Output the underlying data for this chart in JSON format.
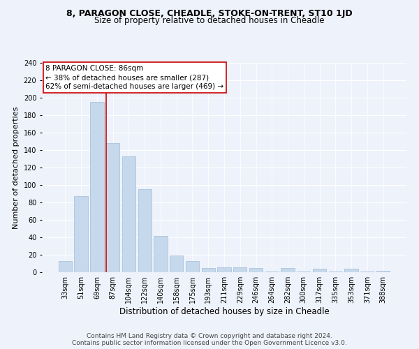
{
  "title": "8, PARAGON CLOSE, CHEADLE, STOKE-ON-TRENT, ST10 1JD",
  "subtitle": "Size of property relative to detached houses in Cheadle",
  "xlabel": "Distribution of detached houses by size in Cheadle",
  "ylabel": "Number of detached properties",
  "footer_line1": "Contains HM Land Registry data © Crown copyright and database right 2024.",
  "footer_line2": "Contains public sector information licensed under the Open Government Licence v3.0.",
  "bar_labels": [
    "33sqm",
    "51sqm",
    "69sqm",
    "87sqm",
    "104sqm",
    "122sqm",
    "140sqm",
    "158sqm",
    "175sqm",
    "193sqm",
    "211sqm",
    "229sqm",
    "246sqm",
    "264sqm",
    "282sqm",
    "300sqm",
    "317sqm",
    "335sqm",
    "353sqm",
    "371sqm",
    "388sqm"
  ],
  "bar_values": [
    13,
    87,
    195,
    148,
    133,
    95,
    42,
    19,
    13,
    5,
    6,
    6,
    5,
    1,
    5,
    1,
    4,
    1,
    4,
    1,
    2
  ],
  "bar_color": "#c6d9ec",
  "bar_edge_color": "#a0bcd8",
  "annotation_box_text": "8 PARAGON CLOSE: 86sqm\n← 38% of detached houses are smaller (287)\n62% of semi-detached houses are larger (469) →",
  "vline_color": "#cc0000",
  "vline_x_index": 3,
  "ylim": [
    0,
    240
  ],
  "yticks": [
    0,
    20,
    40,
    60,
    80,
    100,
    120,
    140,
    160,
    180,
    200,
    220,
    240
  ],
  "bg_color": "#eef2fb",
  "grid_color": "#ffffff",
  "annotation_box_color": "#ffffff",
  "annotation_box_edge": "#cc0000",
  "title_fontsize": 9,
  "subtitle_fontsize": 8.5,
  "xlabel_fontsize": 8.5,
  "ylabel_fontsize": 8,
  "tick_fontsize": 7,
  "footer_fontsize": 6.5
}
